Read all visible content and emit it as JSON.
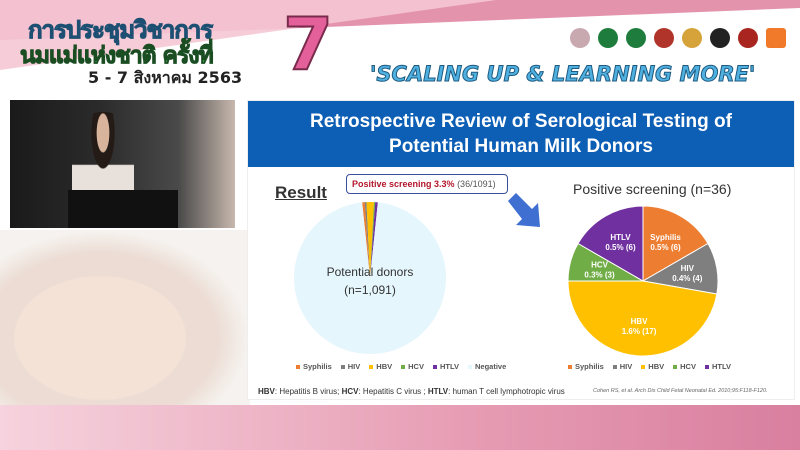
{
  "banner": {
    "thai_line1": "การประชุมวิชาการ",
    "thai_line2": "นมแม่แห่งชาติ ครั้งที่",
    "number": "7",
    "date": "5 - 7 สิงหาคม 2563",
    "slogan": "'SCALING UP & LEARNING MORE'",
    "logos": [
      "logo-1",
      "logo-2",
      "logo-3",
      "logo-4",
      "logo-5",
      "logo-6",
      "logo-7",
      "สสส"
    ]
  },
  "slide": {
    "title_line1": "Retrospective Review of Serological Testing of",
    "title_line2": "Potential Human Milk Donors",
    "result_label": "Result",
    "callout_bold": "Positive screening 3.3%",
    "callout_count": "(36/1091)",
    "footnote": {
      "hbv_abbr": "HBV",
      "hbv_text": ": Hepatitis B virus; ",
      "hcv_abbr": "HCV",
      "hcv_text": ": Hepatitis C virus ; ",
      "htlv_abbr": "HTLV",
      "htlv_text": ": human T cell lymphotropic virus"
    },
    "citation": "Cohen RS, et al. Arch Dis Child Fetal Neonatal Ed. 2010;95:F118-F120."
  },
  "colors": {
    "Syphilis": "#ed7d31",
    "HIV": "#7f7f7f",
    "HBV": "#ffc000",
    "HCV": "#70ad47",
    "HTLV": "#7030a0",
    "Negative": "#e6f6fd",
    "title_bar": "#0d5eb5"
  },
  "chart_data": [
    {
      "type": "pie",
      "center_label_line1": "Potential donors",
      "center_label_line2": "(n=1,091)",
      "categories": [
        "Syphilis",
        "HIV",
        "HBV",
        "HCV",
        "HTLV",
        "Negative"
      ],
      "values": [
        6,
        4,
        17,
        3,
        6,
        1055
      ],
      "legend": [
        "Syphilis",
        "HIV",
        "HBV",
        "HCV",
        "HTLV",
        "Negative"
      ],
      "legend_placement": "bottom"
    },
    {
      "type": "pie",
      "title": "Positive screening (n=36)",
      "categories": [
        "Syphilis",
        "HIV",
        "HBV",
        "HCV",
        "HTLV"
      ],
      "values": [
        6,
        4,
        17,
        3,
        6
      ],
      "labels": [
        [
          "Syphilis",
          "0.5% (6)"
        ],
        [
          "HIV",
          "0.4% (4)"
        ],
        [
          "HBV",
          "1.6% (17)"
        ],
        [
          "HCV",
          "0.3% (3)"
        ],
        [
          "HTLV",
          "0.5% (6)"
        ]
      ],
      "legend": [
        "Syphilis",
        "HIV",
        "HBV",
        "HCV",
        "HTLV"
      ],
      "legend_placement": "bottom"
    }
  ]
}
